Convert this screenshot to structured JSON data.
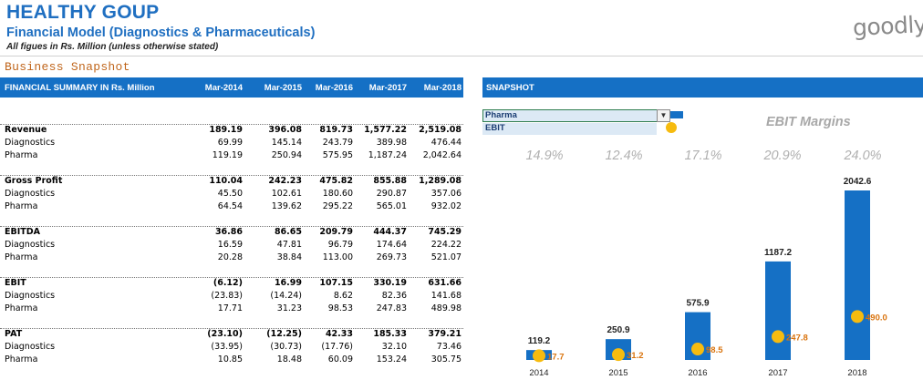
{
  "header": {
    "title": "HEALTHY GOUP",
    "subtitle": "Financial Model (Diagnostics & Pharmaceuticals)",
    "note": "All figues in Rs. Million (unless otherwise stated)",
    "logo": "goodly",
    "section": "Business Snapshot"
  },
  "table": {
    "title": "FINANCIAL SUMMARY IN Rs. Million",
    "columns": [
      "Mar-2014",
      "Mar-2015",
      "Mar-2016",
      "Mar-2017",
      "Mar-2018"
    ],
    "groups": [
      {
        "label": "Revenue",
        "values": [
          "189.19",
          "396.08",
          "819.73",
          "1,577.22",
          "2,519.08"
        ],
        "rows": [
          {
            "label": "Diagnostics",
            "values": [
              "69.99",
              "145.14",
              "243.79",
              "389.98",
              "476.44"
            ]
          },
          {
            "label": "Pharma",
            "values": [
              "119.19",
              "250.94",
              "575.95",
              "1,187.24",
              "2,042.64"
            ]
          }
        ]
      },
      {
        "label": "Gross Profit",
        "values": [
          "110.04",
          "242.23",
          "475.82",
          "855.88",
          "1,289.08"
        ],
        "rows": [
          {
            "label": "Diagnostics",
            "values": [
              "45.50",
              "102.61",
              "180.60",
              "290.87",
              "357.06"
            ]
          },
          {
            "label": "Pharma",
            "values": [
              "64.54",
              "139.62",
              "295.22",
              "565.01",
              "932.02"
            ]
          }
        ]
      },
      {
        "label": "EBITDA",
        "values": [
          "36.86",
          "86.65",
          "209.79",
          "444.37",
          "745.29"
        ],
        "rows": [
          {
            "label": "Diagnostics",
            "values": [
              "16.59",
              "47.81",
              "96.79",
              "174.64",
              "224.22"
            ]
          },
          {
            "label": "Pharma",
            "values": [
              "20.28",
              "38.84",
              "113.00",
              "269.73",
              "521.07"
            ]
          }
        ]
      },
      {
        "label": "EBIT",
        "values": [
          "(6.12)",
          "16.99",
          "107.15",
          "330.19",
          "631.66"
        ],
        "rows": [
          {
            "label": "Diagnostics",
            "values": [
              "(23.83)",
              "(14.24)",
              "8.62",
              "82.36",
              "141.68"
            ]
          },
          {
            "label": "Pharma",
            "values": [
              "17.71",
              "31.23",
              "98.53",
              "247.83",
              "489.98"
            ]
          }
        ]
      },
      {
        "label": "PAT",
        "values": [
          "(23.10)",
          "(12.25)",
          "42.33",
          "185.33",
          "379.21"
        ],
        "rows": [
          {
            "label": "Diagnostics",
            "values": [
              "(33.95)",
              "(30.73)",
              "(17.76)",
              "32.10",
              "73.46"
            ]
          },
          {
            "label": "Pharma",
            "values": [
              "10.85",
              "18.48",
              "60.09",
              "153.24",
              "305.75"
            ]
          }
        ]
      }
    ]
  },
  "snapshot": {
    "title": "SNAPSHOT",
    "selected_segment": "Pharma",
    "metric_option": "EBIT",
    "margins_title": "EBIT Margins",
    "margins": [
      "14.9%",
      "12.4%",
      "17.1%",
      "20.9%",
      "24.0%"
    ]
  },
  "colors": {
    "bar": "#1570c5",
    "dot": "#f6bb0f",
    "dot_label": "#d9730d",
    "header_bg": "#1570c5"
  },
  "chart_data": {
    "type": "bar",
    "categories": [
      "2014",
      "2015",
      "2016",
      "2017",
      "2018"
    ],
    "series": [
      {
        "name": "Pharma",
        "type": "bar",
        "values": [
          119.2,
          250.9,
          575.9,
          1187.2,
          2042.6
        ],
        "labels": [
          "119.2",
          "250.9",
          "575.9",
          "1187.2",
          "2042.6"
        ]
      },
      {
        "name": "EBIT",
        "type": "scatter",
        "values": [
          17.7,
          31.2,
          98.5,
          247.8,
          490.0
        ],
        "labels": [
          "17.7",
          "31.2",
          "98.5",
          "247.8",
          "490.0"
        ]
      }
    ],
    "title": "",
    "grid": false
  }
}
